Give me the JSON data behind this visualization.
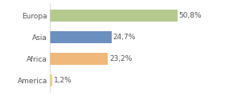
{
  "categories": [
    "Europa",
    "Asia",
    "Africa",
    "America"
  ],
  "values": [
    50.8,
    24.7,
    23.2,
    1.2
  ],
  "labels": [
    "50,8%",
    "24,7%",
    "23,2%",
    "1,2%"
  ],
  "bar_colors": [
    "#b5c98e",
    "#6b8fbf",
    "#f0b87a",
    "#e8d870"
  ],
  "background_color": "#ffffff",
  "xlim": [
    0,
    68
  ],
  "bar_height": 0.55,
  "label_fontsize": 6.5,
  "category_fontsize": 6.5,
  "text_color": "#555555"
}
